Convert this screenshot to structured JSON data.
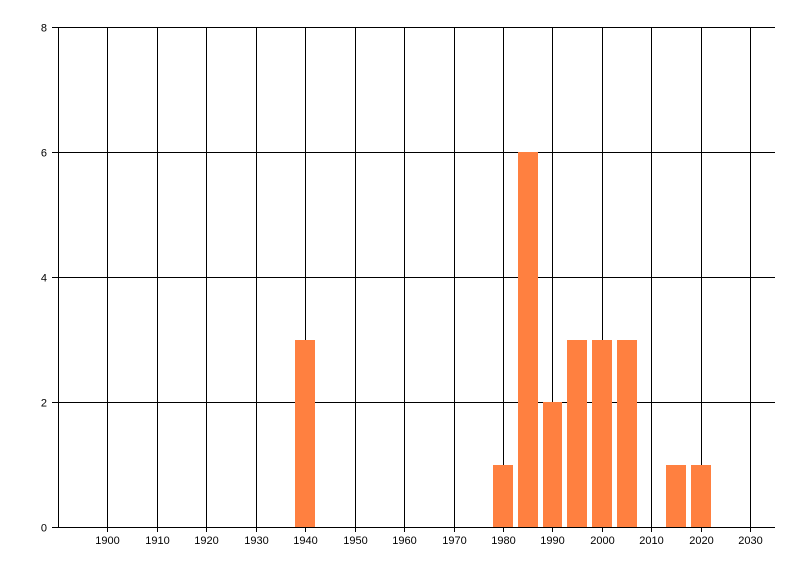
{
  "chart_data": {
    "type": "bar",
    "title": "",
    "xlabel": "",
    "ylabel": "",
    "x": [
      1940,
      1980,
      1985,
      1990,
      1995,
      2000,
      2005,
      2015,
      2020
    ],
    "values": [
      3,
      1,
      6,
      2,
      3,
      3,
      3,
      1,
      1
    ],
    "bar_width_years": 4,
    "xlim": [
      1890,
      2035
    ],
    "ylim": [
      0,
      8
    ],
    "xticks": [
      "1900",
      "1910",
      "1920",
      "1930",
      "1940",
      "1950",
      "1960",
      "1970",
      "1980",
      "1990",
      "2000",
      "2010",
      "2020",
      "2030"
    ],
    "yticks": [
      "0",
      "2",
      "4",
      "6",
      "8"
    ],
    "grid": true,
    "legend": "none",
    "bar_color": "#FF8040",
    "grid_color": "#000000"
  }
}
